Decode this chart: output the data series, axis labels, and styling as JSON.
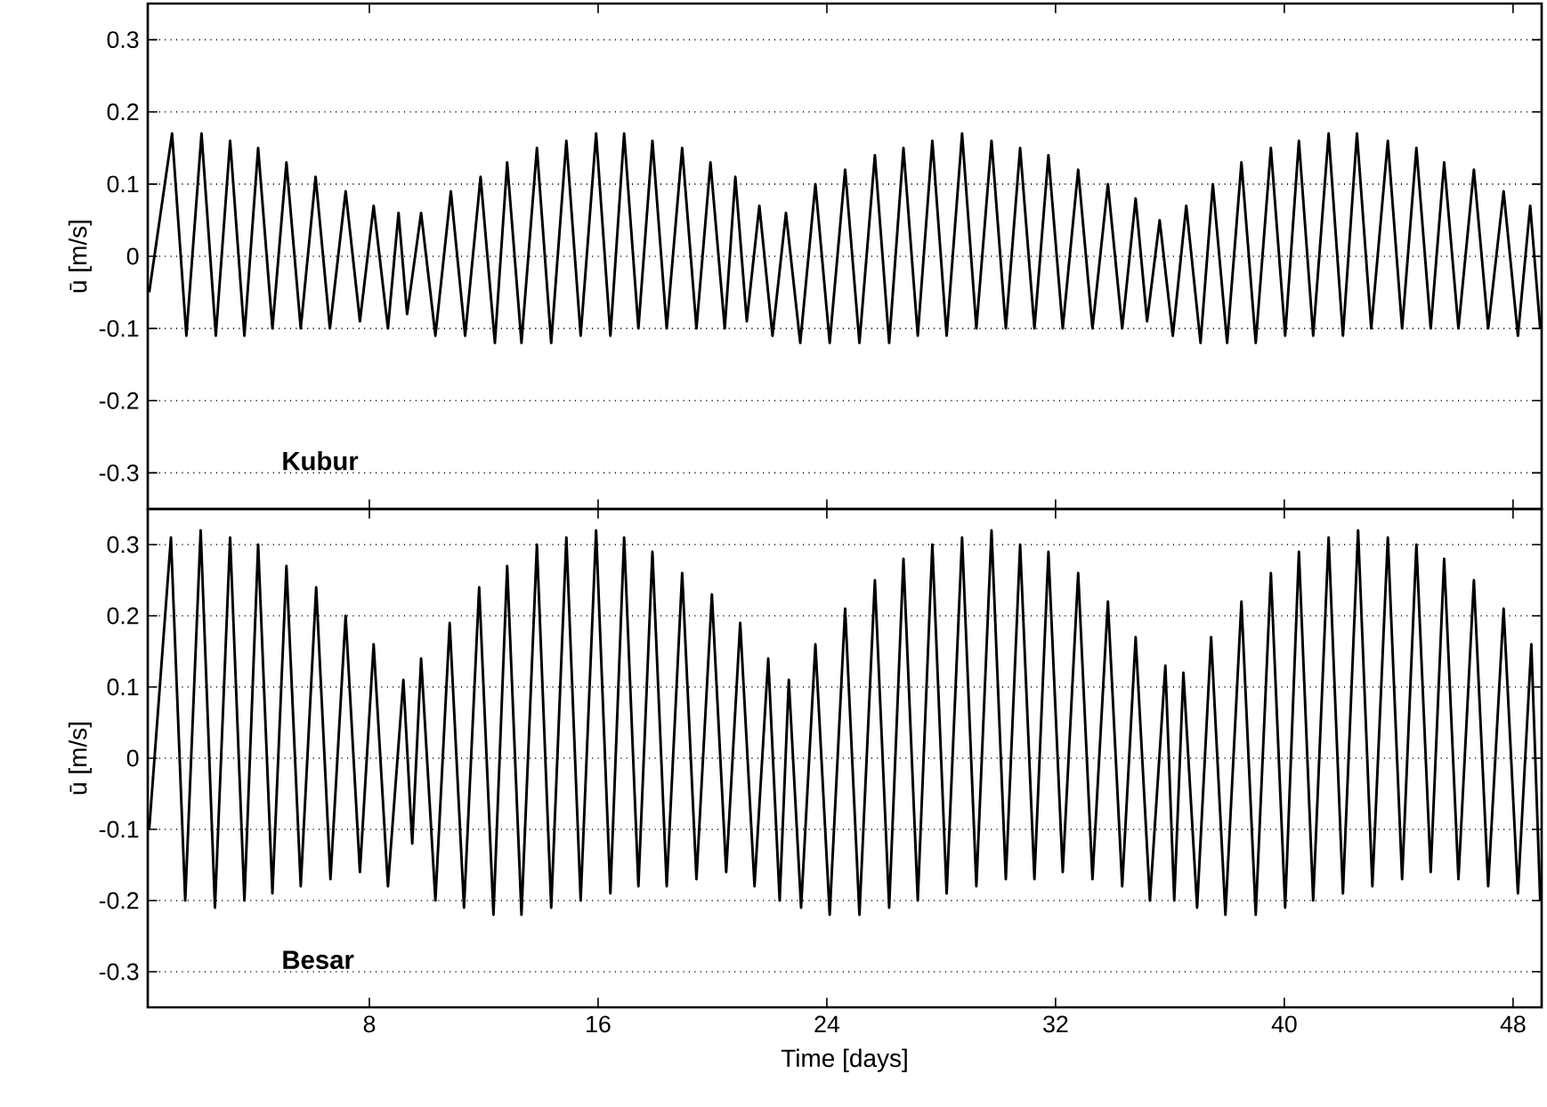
{
  "chart_data": [
    {
      "type": "line",
      "ylabel": "ū [m/s]",
      "annotations": [
        "Kubur"
      ],
      "xlim": [
        0.25,
        49
      ],
      "xticks": [
        8,
        16,
        24,
        32,
        40,
        48
      ],
      "ylim": [
        -0.35,
        0.35
      ],
      "yticks": [
        -0.3,
        -0.2,
        -0.1,
        0,
        0.1,
        0.2,
        0.3
      ],
      "grid": "y",
      "tick_labels": "y",
      "series": [
        {
          "color": "#000000",
          "x": [
            0.3,
            1.1,
            1.6,
            2.13,
            2.63,
            3.13,
            3.63,
            4.11,
            4.61,
            5.1,
            5.6,
            6.12,
            6.62,
            7.17,
            7.67,
            8.15,
            8.65,
            9.02,
            9.32,
            9.81,
            10.31,
            10.85,
            11.35,
            11.89,
            12.39,
            12.82,
            13.32,
            13.86,
            14.36,
            14.89,
            15.39,
            15.93,
            16.43,
            16.91,
            17.41,
            17.9,
            18.4,
            18.94,
            19.44,
            19.93,
            20.43,
            20.8,
            21.2,
            21.64,
            22.1,
            22.57,
            23.07,
            23.6,
            24.1,
            24.64,
            25.14,
            25.68,
            26.18,
            26.68,
            27.18,
            27.69,
            28.19,
            28.73,
            29.23,
            29.76,
            30.26,
            30.76,
            31.26,
            31.75,
            32.25,
            32.79,
            33.29,
            33.83,
            34.33,
            34.8,
            35.2,
            35.64,
            36.1,
            36.57,
            37.07,
            37.5,
            38.0,
            38.5,
            39.0,
            39.53,
            40.03,
            40.51,
            41.01,
            41.55,
            42.05,
            42.54,
            43.04,
            43.62,
            44.12,
            44.62,
            45.12,
            45.59,
            46.09,
            46.63,
            47.13,
            47.67,
            48.17,
            48.6,
            48.95
          ],
          "values": [
            -0.05,
            0.17,
            -0.11,
            0.17,
            -0.11,
            0.16,
            -0.11,
            0.15,
            -0.1,
            0.13,
            -0.1,
            0.11,
            -0.1,
            0.09,
            -0.09,
            0.07,
            -0.1,
            0.06,
            -0.08,
            0.06,
            -0.11,
            0.09,
            -0.11,
            0.11,
            -0.12,
            0.13,
            -0.12,
            0.15,
            -0.12,
            0.16,
            -0.11,
            0.17,
            -0.11,
            0.17,
            -0.1,
            0.16,
            -0.1,
            0.15,
            -0.1,
            0.13,
            -0.1,
            0.11,
            -0.09,
            0.07,
            -0.11,
            0.06,
            -0.12,
            0.1,
            -0.12,
            0.12,
            -0.12,
            0.14,
            -0.12,
            0.15,
            -0.11,
            0.16,
            -0.11,
            0.17,
            -0.1,
            0.16,
            -0.1,
            0.15,
            -0.1,
            0.14,
            -0.1,
            0.12,
            -0.1,
            0.1,
            -0.1,
            0.08,
            -0.09,
            0.05,
            -0.11,
            0.07,
            -0.12,
            0.1,
            -0.12,
            0.13,
            -0.12,
            0.15,
            -0.11,
            0.16,
            -0.11,
            0.17,
            -0.11,
            0.17,
            -0.1,
            0.16,
            -0.1,
            0.15,
            -0.1,
            0.13,
            -0.1,
            0.12,
            -0.1,
            0.09,
            -0.11,
            0.07,
            -0.1
          ]
        }
      ]
    },
    {
      "type": "line",
      "xlabel": "Time [days]",
      "ylabel": "ū [m/s]",
      "annotations": [
        "Besar"
      ],
      "xlim": [
        0.25,
        49
      ],
      "xticks": [
        8,
        16,
        24,
        32,
        40,
        48
      ],
      "ylim": [
        -0.35,
        0.35
      ],
      "yticks": [
        -0.3,
        -0.2,
        -0.1,
        0,
        0.1,
        0.2,
        0.3
      ],
      "grid": "y",
      "series": [
        {
          "color": "#000000",
          "x": [
            0.3,
            1.06,
            1.56,
            2.1,
            2.6,
            3.13,
            3.63,
            4.11,
            4.61,
            5.1,
            5.6,
            6.14,
            6.64,
            7.17,
            7.67,
            8.15,
            8.65,
            9.19,
            9.5,
            9.81,
            10.31,
            10.81,
            11.31,
            11.84,
            12.34,
            12.82,
            13.32,
            13.86,
            14.36,
            14.89,
            15.39,
            15.93,
            16.43,
            16.91,
            17.41,
            17.9,
            18.4,
            18.94,
            19.44,
            19.98,
            20.48,
            20.97,
            21.47,
            21.95,
            22.35,
            22.67,
            23.1,
            23.6,
            24.1,
            24.64,
            25.14,
            25.68,
            26.18,
            26.68,
            27.18,
            27.69,
            28.19,
            28.73,
            29.23,
            29.76,
            30.26,
            30.76,
            31.26,
            31.75,
            32.25,
            32.79,
            33.29,
            33.83,
            34.33,
            34.8,
            35.3,
            35.84,
            36.15,
            36.47,
            36.95,
            37.44,
            37.94,
            38.5,
            39.0,
            39.53,
            40.03,
            40.51,
            41.01,
            41.55,
            42.05,
            42.58,
            43.08,
            43.62,
            44.12,
            44.62,
            45.12,
            45.59,
            46.09,
            46.63,
            47.13,
            47.67,
            48.17,
            48.64,
            48.95
          ],
          "values": [
            -0.1,
            0.31,
            -0.2,
            0.32,
            -0.21,
            0.31,
            -0.2,
            0.3,
            -0.19,
            0.27,
            -0.18,
            0.24,
            -0.17,
            0.2,
            -0.16,
            0.16,
            -0.18,
            0.11,
            -0.12,
            0.14,
            -0.2,
            0.19,
            -0.21,
            0.24,
            -0.22,
            0.27,
            -0.22,
            0.3,
            -0.21,
            0.31,
            -0.2,
            0.32,
            -0.19,
            0.31,
            -0.18,
            0.29,
            -0.18,
            0.26,
            -0.17,
            0.23,
            -0.16,
            0.19,
            -0.18,
            0.14,
            -0.2,
            0.11,
            -0.21,
            0.16,
            -0.22,
            0.21,
            -0.22,
            0.25,
            -0.21,
            0.28,
            -0.2,
            0.3,
            -0.19,
            0.31,
            -0.18,
            0.32,
            -0.17,
            0.3,
            -0.17,
            0.29,
            -0.16,
            0.26,
            -0.17,
            0.22,
            -0.18,
            0.17,
            -0.2,
            0.13,
            -0.2,
            0.12,
            -0.21,
            0.17,
            -0.22,
            0.22,
            -0.22,
            0.26,
            -0.21,
            0.29,
            -0.2,
            0.31,
            -0.19,
            0.32,
            -0.18,
            0.31,
            -0.17,
            0.3,
            -0.16,
            0.28,
            -0.17,
            0.25,
            -0.18,
            0.21,
            -0.19,
            0.16,
            -0.2
          ]
        }
      ]
    }
  ]
}
